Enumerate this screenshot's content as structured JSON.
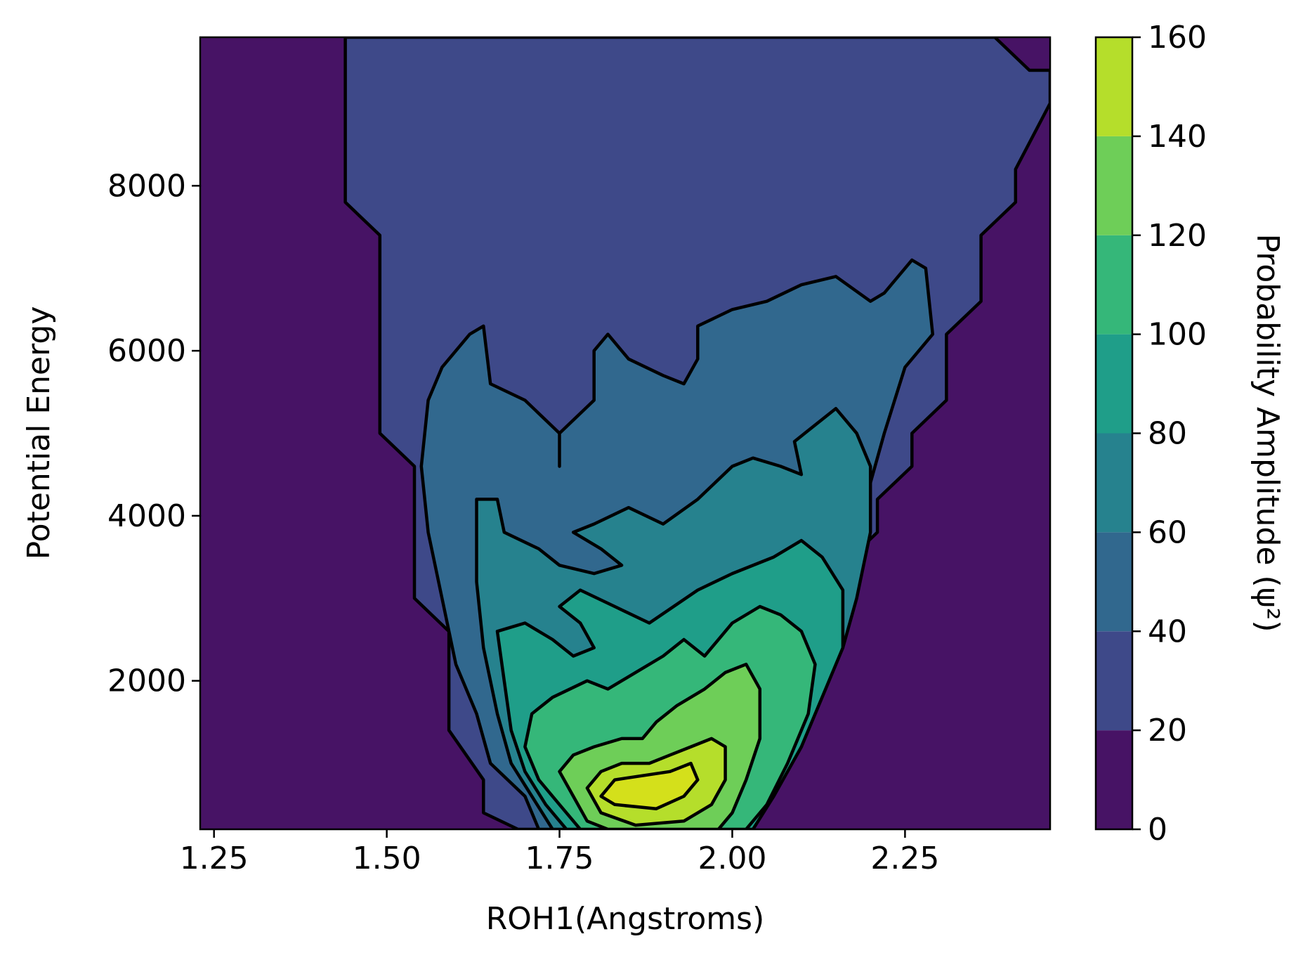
{
  "chart_data": {
    "type": "contourf",
    "xlabel": "ROH1(Angstroms)",
    "ylabel": "Potential Energy",
    "colorbar_label": "Probability Amplitude (ψ²)",
    "xlim": [
      1.23,
      2.46
    ],
    "ylim": [
      200,
      9800
    ],
    "x_ticks": [
      1.25,
      1.5,
      1.75,
      2.0,
      2.25
    ],
    "x_tick_labels": [
      "1.25",
      "1.50",
      "1.75",
      "2.00",
      "2.25"
    ],
    "y_ticks": [
      2000,
      4000,
      6000,
      8000
    ],
    "y_tick_labels": [
      "2000",
      "4000",
      "6000",
      "8000"
    ],
    "levels": [
      0,
      20,
      40,
      60,
      80,
      100,
      120,
      140,
      160
    ],
    "level_labels": [
      "0",
      "20",
      "40",
      "60",
      "80",
      "100",
      "120",
      "140",
      "160"
    ],
    "level_colors": [
      "#471365",
      "#3e4989",
      "#31688e",
      "#26828e",
      "#1f9e89",
      "#35b779",
      "#6ece58",
      "#b5de2b",
      "#d4e01b"
    ],
    "grid": false,
    "legend": "colorbar-right",
    "contours": [
      {
        "level": 20,
        "points": [
          [
            1.44,
            9800
          ],
          [
            1.44,
            7800
          ],
          [
            1.49,
            7400
          ],
          [
            1.49,
            5000
          ],
          [
            1.54,
            4600
          ],
          [
            1.54,
            3000
          ],
          [
            1.59,
            2600
          ],
          [
            1.59,
            1400
          ],
          [
            1.64,
            800
          ],
          [
            1.64,
            400
          ],
          [
            1.69,
            200
          ],
          [
            1.96,
            200
          ],
          [
            2.01,
            600
          ],
          [
            2.06,
            1000
          ],
          [
            2.06,
            1600
          ],
          [
            2.11,
            2200
          ],
          [
            2.16,
            2600
          ],
          [
            2.16,
            3400
          ],
          [
            2.21,
            3800
          ],
          [
            2.21,
            4200
          ],
          [
            2.26,
            4600
          ],
          [
            2.26,
            5000
          ],
          [
            2.31,
            5400
          ],
          [
            2.31,
            6200
          ],
          [
            2.36,
            6600
          ],
          [
            2.36,
            7400
          ],
          [
            2.41,
            7800
          ],
          [
            2.41,
            8200
          ],
          [
            2.46,
            9000
          ],
          [
            2.46,
            9400
          ],
          [
            2.43,
            9400
          ],
          [
            2.38,
            9800
          ]
        ]
      },
      {
        "level": 40,
        "points": [
          [
            1.72,
            200
          ],
          [
            1.7,
            600
          ],
          [
            1.65,
            1000
          ],
          [
            1.63,
            1600
          ],
          [
            1.6,
            2200
          ],
          [
            1.58,
            3000
          ],
          [
            1.56,
            3800
          ],
          [
            1.55,
            4600
          ],
          [
            1.56,
            5400
          ],
          [
            1.58,
            5800
          ],
          [
            1.62,
            6200
          ],
          [
            1.64,
            6300
          ],
          [
            1.65,
            5600
          ],
          [
            1.7,
            5400
          ],
          [
            1.75,
            5000
          ],
          [
            1.75,
            4600
          ],
          [
            1.75,
            5000
          ],
          [
            1.8,
            5400
          ],
          [
            1.8,
            6000
          ],
          [
            1.82,
            6200
          ],
          [
            1.85,
            5900
          ],
          [
            1.9,
            5700
          ],
          [
            1.93,
            5600
          ],
          [
            1.95,
            5900
          ],
          [
            1.95,
            6300
          ],
          [
            2.0,
            6500
          ],
          [
            2.05,
            6600
          ],
          [
            2.1,
            6800
          ],
          [
            2.15,
            6900
          ],
          [
            2.2,
            6600
          ],
          [
            2.22,
            6700
          ],
          [
            2.26,
            7100
          ],
          [
            2.28,
            7000
          ],
          [
            2.29,
            6200
          ],
          [
            2.25,
            5800
          ],
          [
            2.22,
            5000
          ],
          [
            2.2,
            4400
          ],
          [
            2.18,
            3800
          ],
          [
            2.15,
            3000
          ],
          [
            2.12,
            2400
          ],
          [
            2.08,
            1800
          ],
          [
            2.03,
            1200
          ],
          [
            2.0,
            600
          ],
          [
            1.98,
            200
          ]
        ]
      },
      {
        "level": 60,
        "points": [
          [
            1.74,
            200
          ],
          [
            1.71,
            600
          ],
          [
            1.68,
            1000
          ],
          [
            1.66,
            1600
          ],
          [
            1.64,
            2400
          ],
          [
            1.63,
            3200
          ],
          [
            1.63,
            4000
          ],
          [
            1.63,
            4200
          ],
          [
            1.66,
            4200
          ],
          [
            1.67,
            3800
          ],
          [
            1.72,
            3600
          ],
          [
            1.75,
            3400
          ],
          [
            1.8,
            3300
          ],
          [
            1.84,
            3400
          ],
          [
            1.81,
            3600
          ],
          [
            1.77,
            3800
          ],
          [
            1.8,
            3900
          ],
          [
            1.85,
            4100
          ],
          [
            1.9,
            3900
          ],
          [
            1.95,
            4200
          ],
          [
            2.0,
            4600
          ],
          [
            2.03,
            4700
          ],
          [
            2.07,
            4600
          ],
          [
            2.1,
            4500
          ],
          [
            2.09,
            4900
          ],
          [
            2.15,
            5300
          ],
          [
            2.18,
            5000
          ],
          [
            2.2,
            4600
          ],
          [
            2.2,
            3800
          ],
          [
            2.18,
            3000
          ],
          [
            2.16,
            2400
          ],
          [
            2.12,
            1800
          ],
          [
            2.08,
            1200
          ],
          [
            2.04,
            600
          ],
          [
            2.01,
            200
          ]
        ]
      },
      {
        "level": 80,
        "points": [
          [
            1.76,
            200
          ],
          [
            1.73,
            500
          ],
          [
            1.7,
            900
          ],
          [
            1.68,
            1400
          ],
          [
            1.67,
            2000
          ],
          [
            1.66,
            2600
          ],
          [
            1.7,
            2700
          ],
          [
            1.74,
            2500
          ],
          [
            1.77,
            2300
          ],
          [
            1.8,
            2400
          ],
          [
            1.78,
            2700
          ],
          [
            1.75,
            2900
          ],
          [
            1.78,
            3100
          ],
          [
            1.83,
            2900
          ],
          [
            1.88,
            2700
          ],
          [
            1.95,
            3100
          ],
          [
            2.0,
            3300
          ],
          [
            2.06,
            3500
          ],
          [
            2.1,
            3700
          ],
          [
            2.13,
            3500
          ],
          [
            2.16,
            3100
          ],
          [
            2.16,
            2400
          ],
          [
            2.13,
            1800
          ],
          [
            2.1,
            1200
          ],
          [
            2.06,
            600
          ],
          [
            2.03,
            200
          ]
        ]
      },
      {
        "level": 100,
        "points": [
          [
            1.78,
            200
          ],
          [
            1.75,
            500
          ],
          [
            1.72,
            800
          ],
          [
            1.7,
            1200
          ],
          [
            1.71,
            1600
          ],
          [
            1.74,
            1800
          ],
          [
            1.79,
            2000
          ],
          [
            1.82,
            1900
          ],
          [
            1.86,
            2100
          ],
          [
            1.9,
            2300
          ],
          [
            1.93,
            2500
          ],
          [
            1.96,
            2300
          ],
          [
            2.0,
            2700
          ],
          [
            2.04,
            2900
          ],
          [
            2.07,
            2800
          ],
          [
            2.1,
            2600
          ],
          [
            2.12,
            2200
          ],
          [
            2.11,
            1600
          ],
          [
            2.08,
            1000
          ],
          [
            2.05,
            500
          ],
          [
            2.02,
            200
          ]
        ]
      },
      {
        "level": 120,
        "points": [
          [
            1.79,
            300
          ],
          [
            1.77,
            600
          ],
          [
            1.75,
            900
          ],
          [
            1.77,
            1100
          ],
          [
            1.8,
            1200
          ],
          [
            1.84,
            1300
          ],
          [
            1.87,
            1300
          ],
          [
            1.89,
            1500
          ],
          [
            1.92,
            1700
          ],
          [
            1.96,
            1900
          ],
          [
            1.99,
            2100
          ],
          [
            2.02,
            2200
          ],
          [
            2.04,
            1900
          ],
          [
            2.04,
            1300
          ],
          [
            2.02,
            800
          ],
          [
            2.0,
            400
          ],
          [
            1.98,
            200
          ],
          [
            1.82,
            200
          ]
        ]
      },
      {
        "level": 140,
        "points": [
          [
            1.81,
            400
          ],
          [
            1.79,
            700
          ],
          [
            1.81,
            900
          ],
          [
            1.84,
            1000
          ],
          [
            1.88,
            1000
          ],
          [
            1.91,
            1100
          ],
          [
            1.94,
            1200
          ],
          [
            1.97,
            1300
          ],
          [
            1.99,
            1200
          ],
          [
            1.99,
            800
          ],
          [
            1.97,
            500
          ],
          [
            1.93,
            300
          ],
          [
            1.86,
            250
          ]
        ]
      },
      {
        "level": 160,
        "points": [
          [
            1.83,
            500
          ],
          [
            1.81,
            600
          ],
          [
            1.83,
            800
          ],
          [
            1.87,
            850
          ],
          [
            1.91,
            900
          ],
          [
            1.94,
            1000
          ],
          [
            1.95,
            800
          ],
          [
            1.93,
            600
          ],
          [
            1.89,
            450
          ]
        ]
      }
    ]
  }
}
